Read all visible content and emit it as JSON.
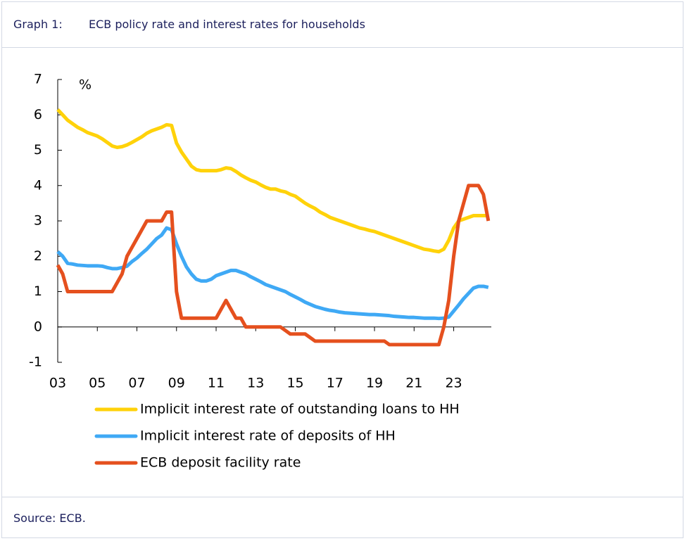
{
  "header": {
    "label": "Graph 1:",
    "title": "ECB policy rate and interest rates for households"
  },
  "footer": {
    "source": "Source: ECB."
  },
  "chart_data": {
    "type": "line",
    "ylabel": "%",
    "x": [
      2003,
      2003.25,
      2003.5,
      2003.75,
      2004,
      2004.25,
      2004.5,
      2004.75,
      2005,
      2005.25,
      2005.5,
      2005.75,
      2006,
      2006.25,
      2006.5,
      2006.75,
      2007,
      2007.25,
      2007.5,
      2007.75,
      2008,
      2008.25,
      2008.5,
      2008.75,
      2009,
      2009.25,
      2009.5,
      2009.75,
      2010,
      2010.25,
      2010.5,
      2010.75,
      2011,
      2011.25,
      2011.5,
      2011.75,
      2012,
      2012.25,
      2012.5,
      2012.75,
      2013,
      2013.25,
      2013.5,
      2013.75,
      2014,
      2014.25,
      2014.5,
      2014.75,
      2015,
      2015.25,
      2015.5,
      2015.75,
      2016,
      2016.25,
      2016.5,
      2016.75,
      2017,
      2017.25,
      2017.5,
      2017.75,
      2018,
      2018.25,
      2018.5,
      2018.75,
      2019,
      2019.25,
      2019.5,
      2019.75,
      2020,
      2020.25,
      2020.5,
      2020.75,
      2021,
      2021.25,
      2021.5,
      2021.75,
      2022,
      2022.25,
      2022.5,
      2022.75,
      2023,
      2023.25,
      2023.5,
      2023.75,
      2024,
      2024.25,
      2024.5,
      2024.75
    ],
    "series": [
      {
        "name": "Implicit interest rate of outstanding loans to HH",
        "color": "#ffd20a",
        "values": [
          6.15,
          6.0,
          5.85,
          5.75,
          5.65,
          5.58,
          5.5,
          5.45,
          5.4,
          5.32,
          5.22,
          5.12,
          5.08,
          5.1,
          5.15,
          5.22,
          5.3,
          5.38,
          5.48,
          5.55,
          5.6,
          5.65,
          5.72,
          5.7,
          5.2,
          4.95,
          4.75,
          4.55,
          4.45,
          4.42,
          4.42,
          4.42,
          4.42,
          4.45,
          4.5,
          4.48,
          4.4,
          4.3,
          4.22,
          4.15,
          4.1,
          4.02,
          3.95,
          3.9,
          3.9,
          3.85,
          3.82,
          3.75,
          3.7,
          3.6,
          3.5,
          3.42,
          3.35,
          3.25,
          3.18,
          3.1,
          3.05,
          3.0,
          2.95,
          2.9,
          2.85,
          2.8,
          2.77,
          2.73,
          2.7,
          2.65,
          2.6,
          2.55,
          2.5,
          2.45,
          2.4,
          2.35,
          2.3,
          2.25,
          2.2,
          2.18,
          2.15,
          2.13,
          2.2,
          2.45,
          2.8,
          3.0,
          3.05,
          3.1,
          3.15,
          3.15,
          3.15,
          3.15
        ]
      },
      {
        "name": "Implicit interest rate of deposits of HH",
        "color": "#3fa9f5",
        "values": [
          2.13,
          2.0,
          1.8,
          1.78,
          1.75,
          1.74,
          1.73,
          1.73,
          1.73,
          1.72,
          1.68,
          1.65,
          1.65,
          1.68,
          1.72,
          1.85,
          1.95,
          2.08,
          2.2,
          2.35,
          2.5,
          2.6,
          2.8,
          2.75,
          2.35,
          2.0,
          1.7,
          1.5,
          1.35,
          1.3,
          1.3,
          1.35,
          1.45,
          1.5,
          1.55,
          1.6,
          1.6,
          1.55,
          1.5,
          1.42,
          1.35,
          1.28,
          1.2,
          1.15,
          1.1,
          1.05,
          1.0,
          0.92,
          0.85,
          0.78,
          0.7,
          0.64,
          0.58,
          0.54,
          0.5,
          0.47,
          0.45,
          0.42,
          0.4,
          0.39,
          0.38,
          0.37,
          0.36,
          0.35,
          0.35,
          0.34,
          0.33,
          0.32,
          0.3,
          0.29,
          0.28,
          0.27,
          0.27,
          0.26,
          0.25,
          0.25,
          0.25,
          0.24,
          0.25,
          0.28,
          0.45,
          0.62,
          0.8,
          0.95,
          1.1,
          1.15,
          1.15,
          1.12
        ]
      },
      {
        "name": "ECB deposit facility rate",
        "color": "#e5501e",
        "values": [
          1.75,
          1.5,
          1.0,
          1.0,
          1.0,
          1.0,
          1.0,
          1.0,
          1.0,
          1.0,
          1.0,
          1.0,
          1.25,
          1.5,
          2.0,
          2.25,
          2.5,
          2.75,
          3.0,
          3.0,
          3.0,
          3.0,
          3.25,
          3.25,
          1.0,
          0.25,
          0.25,
          0.25,
          0.25,
          0.25,
          0.25,
          0.25,
          0.25,
          0.5,
          0.75,
          0.5,
          0.25,
          0.25,
          0.0,
          0.0,
          0.0,
          0.0,
          0.0,
          0.0,
          0.0,
          0.0,
          -0.1,
          -0.2,
          -0.2,
          -0.2,
          -0.2,
          -0.3,
          -0.4,
          -0.4,
          -0.4,
          -0.4,
          -0.4,
          -0.4,
          -0.4,
          -0.4,
          -0.4,
          -0.4,
          -0.4,
          -0.4,
          -0.4,
          -0.4,
          -0.4,
          -0.5,
          -0.5,
          -0.5,
          -0.5,
          -0.5,
          -0.5,
          -0.5,
          -0.5,
          -0.5,
          -0.5,
          -0.5,
          0.0,
          0.75,
          2.0,
          3.0,
          3.5,
          4.0,
          4.0,
          4.0,
          3.75,
          3.0
        ]
      }
    ],
    "xlim": [
      2003,
      2024.9
    ],
    "xticks": [
      {
        "value": 2003,
        "label": "03"
      },
      {
        "value": 2005,
        "label": "05"
      },
      {
        "value": 2007,
        "label": "07"
      },
      {
        "value": 2009,
        "label": "09"
      },
      {
        "value": 2011,
        "label": "11"
      },
      {
        "value": 2013,
        "label": "13"
      },
      {
        "value": 2015,
        "label": "15"
      },
      {
        "value": 2017,
        "label": "17"
      },
      {
        "value": 2019,
        "label": "19"
      },
      {
        "value": 2021,
        "label": "21"
      },
      {
        "value": 2023,
        "label": "23"
      }
    ],
    "ylim": [
      -1,
      7
    ],
    "yticks": [
      -1,
      0,
      1,
      2,
      3,
      4,
      5,
      6,
      7
    ],
    "grid": false
  }
}
